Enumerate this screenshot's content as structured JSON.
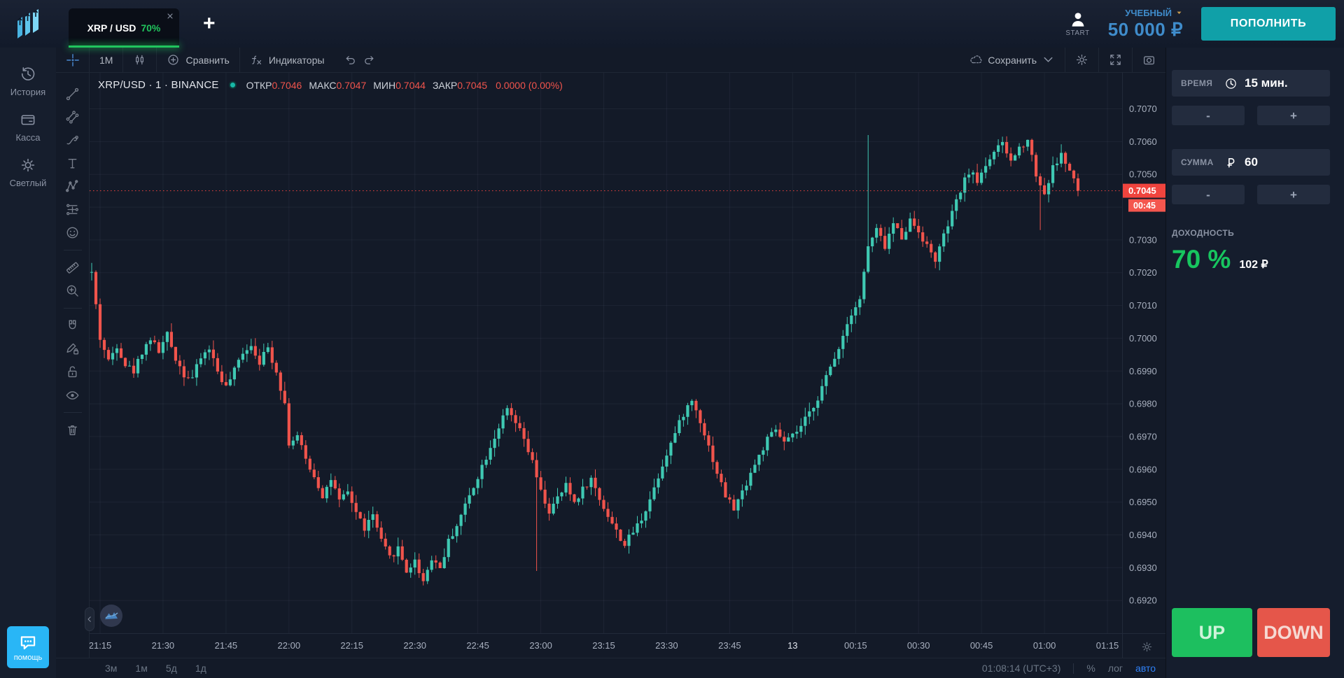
{
  "colors": {
    "up": "#3fc9b3",
    "down": "#f0544c",
    "price_line": "#f0443e",
    "countdown_bg": "#f4564e",
    "grid": "rgba(151,166,195,0.08)",
    "axis_text": "#a8b0bf",
    "tab_green": "#21c45d",
    "deposit_teal": "#10a0a8",
    "balance_blue": "#3f8ccb",
    "up_button": "#1dbf5f",
    "down_button": "#e5564a",
    "help_blue": "#29b6f6"
  },
  "topbar": {
    "tab": {
      "symbol": "XRP / USD",
      "payout": "70%"
    },
    "add_tab_label": "+",
    "user_label": "START",
    "account_type": "УЧЕБНЫЙ",
    "balance": "50 000 ₽",
    "deposit_label": "ПОПОЛНИТЬ"
  },
  "sidebar": {
    "items": [
      {
        "icon": "history",
        "label": "История"
      },
      {
        "icon": "wallet",
        "label": "Касса"
      },
      {
        "icon": "sun",
        "label": "Светлый"
      }
    ],
    "help_label": "помощь"
  },
  "toolbar": {
    "interval": "1М",
    "compare_label": "Сравнить",
    "indicators_label": "Индикаторы",
    "save_label": "Сохранить"
  },
  "drawing_tools": [
    [
      "trend-line",
      "parallel-channel",
      "brush",
      "text-tool",
      "pattern-xabcd",
      "forecast",
      "smiley"
    ],
    [
      "ruler",
      "zoom-in"
    ],
    [
      "magnet",
      "pencil-lock",
      "lock-open",
      "eye"
    ],
    [
      "trash"
    ]
  ],
  "legend": {
    "title": "XRP/USD · 1 · BINANCE",
    "fields": [
      {
        "label": "ОТКР",
        "value": "0.7046"
      },
      {
        "label": "МАКС",
        "value": "0.7047"
      },
      {
        "label": "МИН",
        "value": "0.7044"
      },
      {
        "label": "ЗАКР",
        "value": "0.7045"
      }
    ],
    "change": "0.0000 (0.00%)"
  },
  "chart_footer": {
    "ranges": [
      "3м",
      "1м",
      "5д",
      "1д"
    ],
    "clock": "01:08:14 (UTC+3)",
    "scales": [
      {
        "label": "%",
        "active": false
      },
      {
        "label": "лог",
        "active": false
      },
      {
        "label": "авто",
        "active": true
      }
    ]
  },
  "trade_panel": {
    "time_label": "ВРЕМЯ",
    "time_value": "15 мин.",
    "amount_label": "СУММА",
    "amount_value": "60",
    "minus_label": "-",
    "plus_label": "+",
    "payout_label": "ДОХОДНОСТЬ",
    "payout_percent": "70 %",
    "payout_profit": "102 ₽",
    "up_label": "UP",
    "down_label": "DOWN"
  },
  "chart_data": {
    "type": "candlestick",
    "symbol": "XRP/USD",
    "exchange": "BINANCE",
    "interval_minutes": 1,
    "current_price": 0.7045,
    "countdown": "00:45",
    "last_candle_ohlc": {
      "open": 0.7046,
      "high": 0.7047,
      "low": 0.7044,
      "close": 0.7045
    },
    "price_axis": {
      "min_visible": 0.691,
      "max_visible": 0.7081,
      "ticks": [
        0.692,
        0.693,
        0.694,
        0.695,
        0.696,
        0.697,
        0.698,
        0.699,
        0.7,
        0.701,
        0.702,
        0.703,
        0.704,
        0.705,
        0.706,
        0.707
      ]
    },
    "time_axis": {
      "minutes_span": 246,
      "ticks": [
        {
          "m": 0,
          "label": "21:15"
        },
        {
          "m": 15,
          "label": "21:30"
        },
        {
          "m": 30,
          "label": "21:45"
        },
        {
          "m": 45,
          "label": "22:00"
        },
        {
          "m": 60,
          "label": "22:15"
        },
        {
          "m": 75,
          "label": "22:30"
        },
        {
          "m": 90,
          "label": "22:45"
        },
        {
          "m": 105,
          "label": "23:00"
        },
        {
          "m": 120,
          "label": "23:15"
        },
        {
          "m": 135,
          "label": "23:30"
        },
        {
          "m": 150,
          "label": "23:45"
        },
        {
          "m": 165,
          "label": "13",
          "day": true
        },
        {
          "m": 180,
          "label": "00:15"
        },
        {
          "m": 195,
          "label": "00:30"
        },
        {
          "m": 210,
          "label": "00:45"
        },
        {
          "m": 225,
          "label": "01:00"
        },
        {
          "m": 240,
          "label": "01:15"
        }
      ]
    },
    "candles_start_minute": -2,
    "candles_end_minute": 233,
    "price_path_anchors": [
      [
        -2,
        0.702
      ],
      [
        -1,
        0.701
      ],
      [
        0,
        0.7
      ],
      [
        2,
        0.6993
      ],
      [
        4,
        0.6998
      ],
      [
        6,
        0.6992
      ],
      [
        8,
        0.699
      ],
      [
        10,
        0.6996
      ],
      [
        12,
        0.7
      ],
      [
        14,
        0.6996
      ],
      [
        16,
        0.7001
      ],
      [
        18,
        0.6994
      ],
      [
        20,
        0.6989
      ],
      [
        22,
        0.6988
      ],
      [
        24,
        0.6994
      ],
      [
        26,
        0.6997
      ],
      [
        28,
        0.699
      ],
      [
        30,
        0.6985
      ],
      [
        32,
        0.699
      ],
      [
        34,
        0.6996
      ],
      [
        36,
        0.6998
      ],
      [
        38,
        0.6993
      ],
      [
        40,
        0.6997
      ],
      [
        42,
        0.699
      ],
      [
        44,
        0.698
      ],
      [
        45,
        0.6968
      ],
      [
        47,
        0.697
      ],
      [
        49,
        0.6963
      ],
      [
        51,
        0.6958
      ],
      [
        53,
        0.6952
      ],
      [
        55,
        0.6957
      ],
      [
        57,
        0.695
      ],
      [
        59,
        0.6953
      ],
      [
        61,
        0.6947
      ],
      [
        63,
        0.6942
      ],
      [
        65,
        0.6946
      ],
      [
        67,
        0.6938
      ],
      [
        69,
        0.6933
      ],
      [
        71,
        0.6936
      ],
      [
        73,
        0.6929
      ],
      [
        75,
        0.6932
      ],
      [
        77,
        0.6926
      ],
      [
        79,
        0.6933
      ],
      [
        81,
        0.693
      ],
      [
        83,
        0.6938
      ],
      [
        85,
        0.6943
      ],
      [
        87,
        0.6949
      ],
      [
        89,
        0.6955
      ],
      [
        91,
        0.6961
      ],
      [
        93,
        0.6967
      ],
      [
        95,
        0.6973
      ],
      [
        97,
        0.6978
      ],
      [
        99,
        0.6974
      ],
      [
        101,
        0.6969
      ],
      [
        103,
        0.6962
      ],
      [
        105,
        0.6953
      ],
      [
        107,
        0.6947
      ],
      [
        109,
        0.6951
      ],
      [
        111,
        0.6955
      ],
      [
        113,
        0.695
      ],
      [
        115,
        0.6954
      ],
      [
        117,
        0.6957
      ],
      [
        119,
        0.6951
      ],
      [
        121,
        0.6946
      ],
      [
        123,
        0.6941
      ],
      [
        125,
        0.6937
      ],
      [
        127,
        0.6941
      ],
      [
        129,
        0.6945
      ],
      [
        131,
        0.6951
      ],
      [
        133,
        0.6958
      ],
      [
        135,
        0.6965
      ],
      [
        137,
        0.6971
      ],
      [
        139,
        0.6977
      ],
      [
        141,
        0.6981
      ],
      [
        143,
        0.6975
      ],
      [
        145,
        0.6967
      ],
      [
        147,
        0.6959
      ],
      [
        149,
        0.6952
      ],
      [
        151,
        0.6948
      ],
      [
        153,
        0.6953
      ],
      [
        155,
        0.6959
      ],
      [
        157,
        0.6964
      ],
      [
        159,
        0.6969
      ],
      [
        161,
        0.6972
      ],
      [
        163,
        0.6968
      ],
      [
        165,
        0.697
      ],
      [
        167,
        0.6973
      ],
      [
        169,
        0.6977
      ],
      [
        171,
        0.6982
      ],
      [
        173,
        0.6988
      ],
      [
        175,
        0.6994
      ],
      [
        177,
        0.7001
      ],
      [
        179,
        0.7008
      ],
      [
        181,
        0.7012
      ],
      [
        183,
        0.7028
      ],
      [
        185,
        0.7033
      ],
      [
        187,
        0.7028
      ],
      [
        189,
        0.7035
      ],
      [
        191,
        0.7031
      ],
      [
        193,
        0.7036
      ],
      [
        195,
        0.7033
      ],
      [
        197,
        0.7028
      ],
      [
        199,
        0.7024
      ],
      [
        201,
        0.7031
      ],
      [
        203,
        0.7038
      ],
      [
        205,
        0.7045
      ],
      [
        207,
        0.7051
      ],
      [
        209,
        0.7048
      ],
      [
        211,
        0.7053
      ],
      [
        213,
        0.7057
      ],
      [
        215,
        0.7059
      ],
      [
        217,
        0.7054
      ],
      [
        219,
        0.7058
      ],
      [
        221,
        0.7061
      ],
      [
        223,
        0.705
      ],
      [
        225,
        0.7044
      ],
      [
        227,
        0.7052
      ],
      [
        229,
        0.7056
      ],
      [
        231,
        0.7051
      ],
      [
        233,
        0.7045
      ]
    ],
    "wick_extremes": [
      {
        "m": -2,
        "high": 0.7023
      },
      {
        "m": 104,
        "low": 0.6929
      },
      {
        "m": 183,
        "high": 0.7062
      },
      {
        "m": 224,
        "low": 0.7033
      }
    ]
  }
}
